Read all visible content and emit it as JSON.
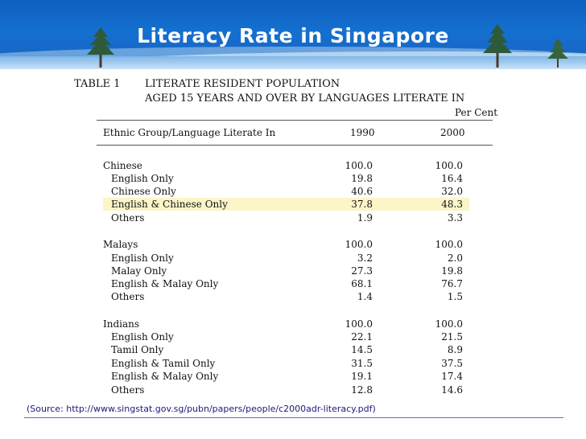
{
  "slide": {
    "title": "Literacy Rate in Singapore",
    "source": "(Source: http://www.singstat.gov.sg/pubn/papers/people/c2000adr-literacy.pdf)"
  },
  "table": {
    "number": "TABLE  1",
    "title_line1": "LITERATE RESIDENT POPULATION",
    "title_line2": "AGED 15 YEARS AND OVER BY LANGUAGES LITERATE IN",
    "unit": "Per Cent",
    "header": {
      "label": "Ethnic Group/Language Literate In",
      "year1": "1990",
      "year2": "2000"
    },
    "highlighted_row": "English & Chinese Only",
    "rows": [
      {
        "label": "Chinese",
        "v1990": "100.0",
        "v2000": "100.0",
        "group": true
      },
      {
        "label": "English Only",
        "v1990": "19.8",
        "v2000": "16.4"
      },
      {
        "label": "Chinese Only",
        "v1990": "40.6",
        "v2000": "32.0"
      },
      {
        "label": "English & Chinese Only",
        "v1990": "37.8",
        "v2000": "48.3"
      },
      {
        "label": "Others",
        "v1990": "1.9",
        "v2000": "3.3"
      },
      {
        "label": "Malays",
        "v1990": "100.0",
        "v2000": "100.0",
        "group": true
      },
      {
        "label": "English Only",
        "v1990": "3.2",
        "v2000": "2.0"
      },
      {
        "label": "Malay Only",
        "v1990": "27.3",
        "v2000": "19.8"
      },
      {
        "label": "English & Malay Only",
        "v1990": "68.1",
        "v2000": "76.7"
      },
      {
        "label": "Others",
        "v1990": "1.4",
        "v2000": "1.5"
      },
      {
        "label": "Indians",
        "v1990": "100.0",
        "v2000": "100.0",
        "group": true
      },
      {
        "label": "English Only",
        "v1990": "22.1",
        "v2000": "21.5"
      },
      {
        "label": "Tamil Only",
        "v1990": "14.5",
        "v2000": "8.9"
      },
      {
        "label": "English & Tamil Only",
        "v1990": "31.5",
        "v2000": "37.5"
      },
      {
        "label": "English & Malay Only",
        "v1990": "19.1",
        "v2000": "17.4"
      },
      {
        "label": "Others",
        "v1990": "12.8",
        "v2000": "14.6"
      }
    ]
  }
}
